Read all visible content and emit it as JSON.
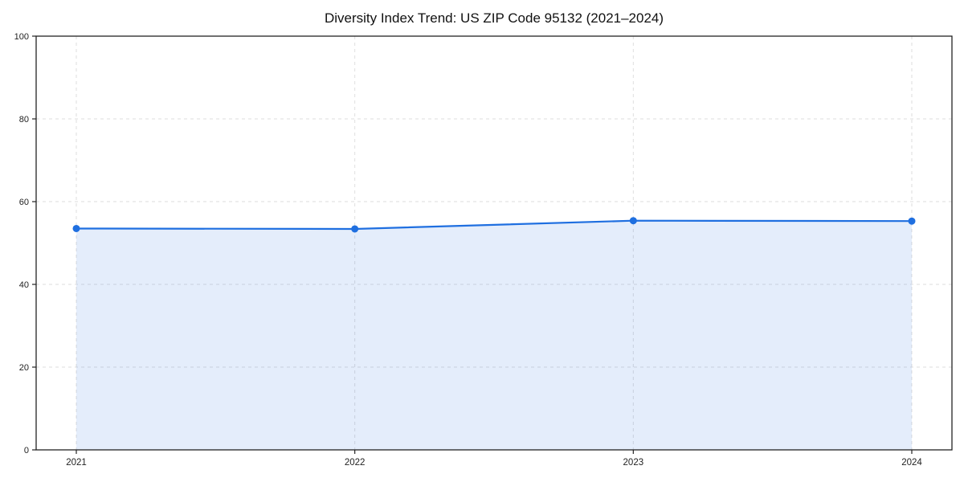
{
  "chart_data": {
    "type": "line",
    "title": "Diversity Index Trend: US ZIP Code 95132 (2021–2024)",
    "x": [
      2021,
      2022,
      2023,
      2024
    ],
    "series": [
      {
        "name": "Diversity Index",
        "values": [
          53.5,
          53.4,
          55.4,
          55.3
        ]
      }
    ],
    "xlabel": "",
    "ylabel": "",
    "ylim": [
      0,
      100
    ],
    "yticks": [
      0,
      20,
      40,
      60,
      80,
      100
    ],
    "grid": true,
    "grid_style": "dashed",
    "legend_position": "none",
    "line_color": "#1f6fe0",
    "fill_color": "rgba(31, 111, 224, 0.12)",
    "marker": "circle",
    "axis_color": "#222222",
    "gridline_color": "#dedede",
    "tick_label_color": "#222222"
  }
}
